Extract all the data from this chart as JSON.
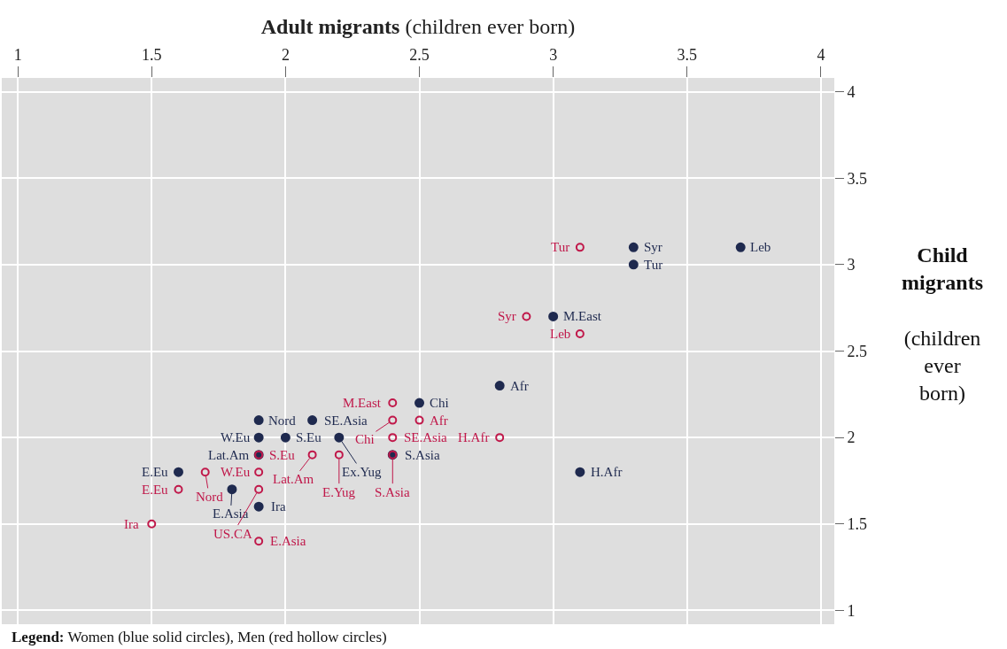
{
  "chart_data": {
    "type": "scatter",
    "xlabel": "Adult migrants (children ever born)",
    "ylabel": "Child migrants (children ever born)",
    "xlim": [
      0.94,
      4.05
    ],
    "ylim": [
      0.92,
      4.08
    ],
    "xticks": [
      1,
      1.5,
      2,
      2.5,
      3,
      3.5,
      4
    ],
    "yticks": [
      1,
      1.5,
      2,
      2.5,
      3,
      3.5,
      4
    ],
    "grid": true,
    "marker": "circle",
    "annotations": [
      "Legend: Women (blue solid circles), Men (red hollow circles)"
    ],
    "series": [
      {
        "color": "#1f2a4f",
        "x": [
          3.7,
          3.3,
          3.3,
          3.0,
          2.8,
          2.5,
          3.1,
          2.4,
          1.9,
          2.1,
          1.9,
          2.0,
          2.2,
          1.9,
          1.6,
          1.8,
          1.9
        ],
        "values": [
          3.1,
          3.1,
          3.0,
          2.7,
          2.3,
          2.2,
          1.8,
          1.9,
          2.1,
          2.1,
          2.0,
          2.0,
          2.0,
          1.9,
          1.8,
          1.7,
          1.6
        ],
        "value_labels": [
          "Leb",
          "Syr",
          "Tur",
          "M.East",
          "Afr",
          "Chi",
          "H.Afr",
          "S.Asia",
          "Nord",
          "SE.Asia",
          "W.Eu",
          "S.Eu",
          "Ex.Yug",
          "Lat.Am",
          "E.Eu",
          "E.Asia",
          "Ira"
        ]
      },
      {
        "color": "#c0184a",
        "x": [
          3.1,
          2.9,
          3.1,
          2.4,
          2.4,
          2.5,
          2.8,
          2.4,
          1.9,
          2.1,
          2.2,
          2.4,
          1.9,
          1.7,
          1.6,
          1.9,
          1.5,
          1.9
        ],
        "values": [
          3.1,
          2.7,
          2.6,
          2.2,
          2.1,
          2.1,
          2.0,
          2.0,
          1.9,
          1.9,
          1.9,
          1.9,
          1.8,
          1.8,
          1.7,
          1.7,
          1.5,
          1.4
        ],
        "value_labels": [
          "Tur",
          "Syr",
          "Leb",
          "M.East",
          "Chi",
          "Afr",
          "H.Afr",
          "SE.Asia",
          "S.Eu",
          "Lat.Am",
          "E.Yug",
          "S.Asia",
          "W.Eu",
          "Nord",
          "E.Eu",
          "US.CA",
          "Ira",
          "E.Asia"
        ]
      }
    ]
  }
}
